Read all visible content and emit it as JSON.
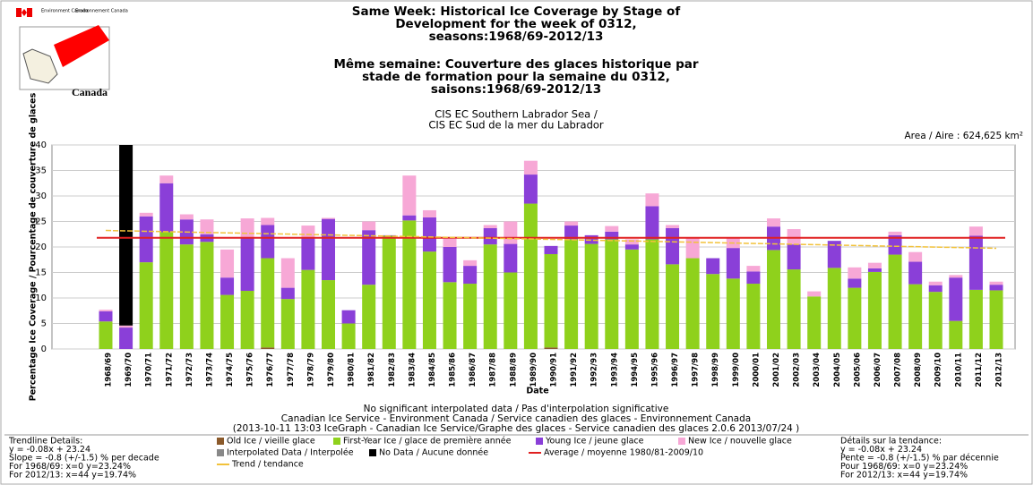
{
  "header": {
    "dept_en": "Environment Canada",
    "dept_fr": "Environnement Canada",
    "wordmark": "Canada"
  },
  "chart_data": {
    "type": "bar",
    "title": [
      "Same Week: Historical Ice Coverage by Stage of",
      "Development for the week of 0312,",
      "seasons:1968/69-2012/13"
    ],
    "title_fr": [
      "Même semaine: Couverture des glaces historique par",
      "stade de formation pour la semaine du 0312,",
      "saisons:1968/69-2012/13"
    ],
    "subtitle": [
      "CIS EC Southern Labrador Sea /",
      "CIS EC Sud de la mer du Labrador"
    ],
    "area_label": "Area / Aire : 624,625 km²",
    "y_label": "Percentage Ice Coverage / Pourcentage de couverture de glaces",
    "x_label": "Date",
    "ylim": [
      0,
      40
    ],
    "yticks": [
      0,
      5,
      10,
      15,
      20,
      25,
      30,
      35,
      40
    ],
    "grid": true,
    "stacked": true,
    "categories": [
      "1968/69",
      "1969/70",
      "1970/71",
      "1971/72",
      "1972/73",
      "1973/74",
      "1974/75",
      "1975/76",
      "1976/77",
      "1977/78",
      "1978/79",
      "1979/80",
      "1980/81",
      "1981/82",
      "1982/83",
      "1983/84",
      "1984/85",
      "1985/86",
      "1986/87",
      "1987/88",
      "1988/89",
      "1989/90",
      "1990/91",
      "1991/92",
      "1992/93",
      "1993/94",
      "1994/95",
      "1995/96",
      "1996/97",
      "1997/98",
      "1998/99",
      "1999/00",
      "2000/01",
      "2001/02",
      "2002/03",
      "2003/04",
      "2004/05",
      "2005/06",
      "2006/07",
      "2007/08",
      "2008/09",
      "2009/10",
      "2010/11",
      "2011/12",
      "2012/13"
    ],
    "series": [
      {
        "name": "Old Ice / vieille glace",
        "color": "#8b5a2b",
        "values": [
          null,
          null,
          null,
          null,
          null,
          null,
          null,
          null,
          0.3,
          null,
          null,
          null,
          null,
          null,
          null,
          null,
          null,
          null,
          null,
          null,
          null,
          null,
          0.3,
          null,
          null,
          null,
          null,
          null,
          null,
          null,
          null,
          null,
          null,
          null,
          null,
          null,
          null,
          null,
          null,
          null,
          null,
          null,
          null,
          null,
          null
        ]
      },
      {
        "name": "First-Year Ice / glace de première année",
        "color": "#8fd11c",
        "values": [
          5.4,
          null,
          17.0,
          22.9,
          20.5,
          21.0,
          10.6,
          11.4,
          17.5,
          9.8,
          15.5,
          13.5,
          5.0,
          12.6,
          22.2,
          25.2,
          19.1,
          13.1,
          12.8,
          20.5,
          15.0,
          28.5,
          18.3,
          21.5,
          20.6,
          21.5,
          19.5,
          21.5,
          16.6,
          17.8,
          14.7,
          13.8,
          12.8,
          19.4,
          15.6,
          10.3,
          15.9,
          12.0,
          15.1,
          18.5,
          12.7,
          11.2,
          5.5,
          11.6,
          11.5
        ]
      },
      {
        "name": "Young Ice / jeune glace",
        "color": "#8a3fd8",
        "values": [
          2.0,
          4.2,
          9.0,
          9.6,
          4.9,
          1.5,
          3.4,
          10.4,
          6.5,
          2.2,
          6.3,
          12.0,
          2.6,
          10.7,
          0.1,
          1.0,
          6.7,
          6.9,
          3.5,
          3.2,
          5.6,
          5.7,
          1.6,
          2.7,
          1.7,
          1.5,
          1.0,
          6.5,
          7.1,
          null,
          3.1,
          6.0,
          2.4,
          4.6,
          4.9,
          null,
          5.3,
          1.8,
          0.7,
          3.8,
          4.4,
          1.3,
          8.5,
          10.6,
          1.1
        ]
      },
      {
        "name": "New Ice / nouvelle glace",
        "color": "#f7a8d6",
        "values": [
          0.3,
          0.4,
          0.7,
          1.5,
          1.0,
          2.9,
          5.5,
          3.8,
          1.4,
          5.8,
          2.4,
          0.2,
          null,
          1.7,
          null,
          7.8,
          1.4,
          1.6,
          1.1,
          0.6,
          4.4,
          2.7,
          null,
          0.8,
          null,
          1.1,
          1.0,
          2.5,
          0.6,
          4.0,
          null,
          2.0,
          1.1,
          1.6,
          3.0,
          1.0,
          null,
          2.2,
          1.1,
          0.7,
          1.9,
          0.7,
          0.5,
          1.8,
          0.6
        ]
      },
      {
        "name": "Interpolated Data / Interpolée",
        "color": "#888888",
        "values": [
          null,
          null,
          null,
          null,
          null,
          null,
          null,
          null,
          null,
          null,
          null,
          null,
          null,
          null,
          null,
          null,
          null,
          null,
          null,
          null,
          null,
          null,
          null,
          null,
          null,
          null,
          null,
          null,
          null,
          null,
          null,
          null,
          null,
          null,
          null,
          null,
          null,
          null,
          null,
          null,
          null,
          null,
          null,
          null,
          null
        ]
      },
      {
        "name": "No Data / Aucune donnée",
        "color": "#000000",
        "values": [
          null,
          35.4,
          null,
          null,
          null,
          null,
          null,
          null,
          null,
          null,
          null,
          null,
          null,
          null,
          null,
          null,
          null,
          null,
          null,
          null,
          null,
          null,
          null,
          null,
          null,
          null,
          null,
          null,
          null,
          null,
          null,
          null,
          null,
          null,
          null,
          null,
          null,
          null,
          null,
          null,
          null,
          null,
          null,
          null,
          null
        ]
      }
    ],
    "average": {
      "name": "Average / moyenne 1980/81-2009/10",
      "color": "#e02020",
      "value": 21.8
    },
    "trend": {
      "name": "Trend / tendance",
      "color": "#f2c23a",
      "values": [
        23.24,
        19.74
      ]
    },
    "footer": [
      "No significant interpolated data / Pas d'interpolation significative",
      "Canadian Ice Service - Environment Canada / Service canadien des glaces - Environnement Canada",
      "(2013-10-11 13:03 IceGraph - Canadian Ice Service/Graphe des glaces - Service canadien des glaces 2.0.6 2013/07/24 )"
    ],
    "trend_details_en": [
      "Trendline Details:",
      "y = -0.08x + 23.24",
      "Slope = -0.8 (+/-1.5) % per decade",
      "For 1968/69: x=0  y=23.24%",
      "For 2012/13: x=44  y=19.74%"
    ],
    "trend_details_fr": [
      "Détails sur la tendance:",
      "y = -0.08x + 23.24",
      "Pente = -0.8 (+/-1.5) % par décennie",
      "Pour 1968/69: x=0  y=23.24%",
      "For 2012/13: x=44  y=19.74%"
    ]
  }
}
